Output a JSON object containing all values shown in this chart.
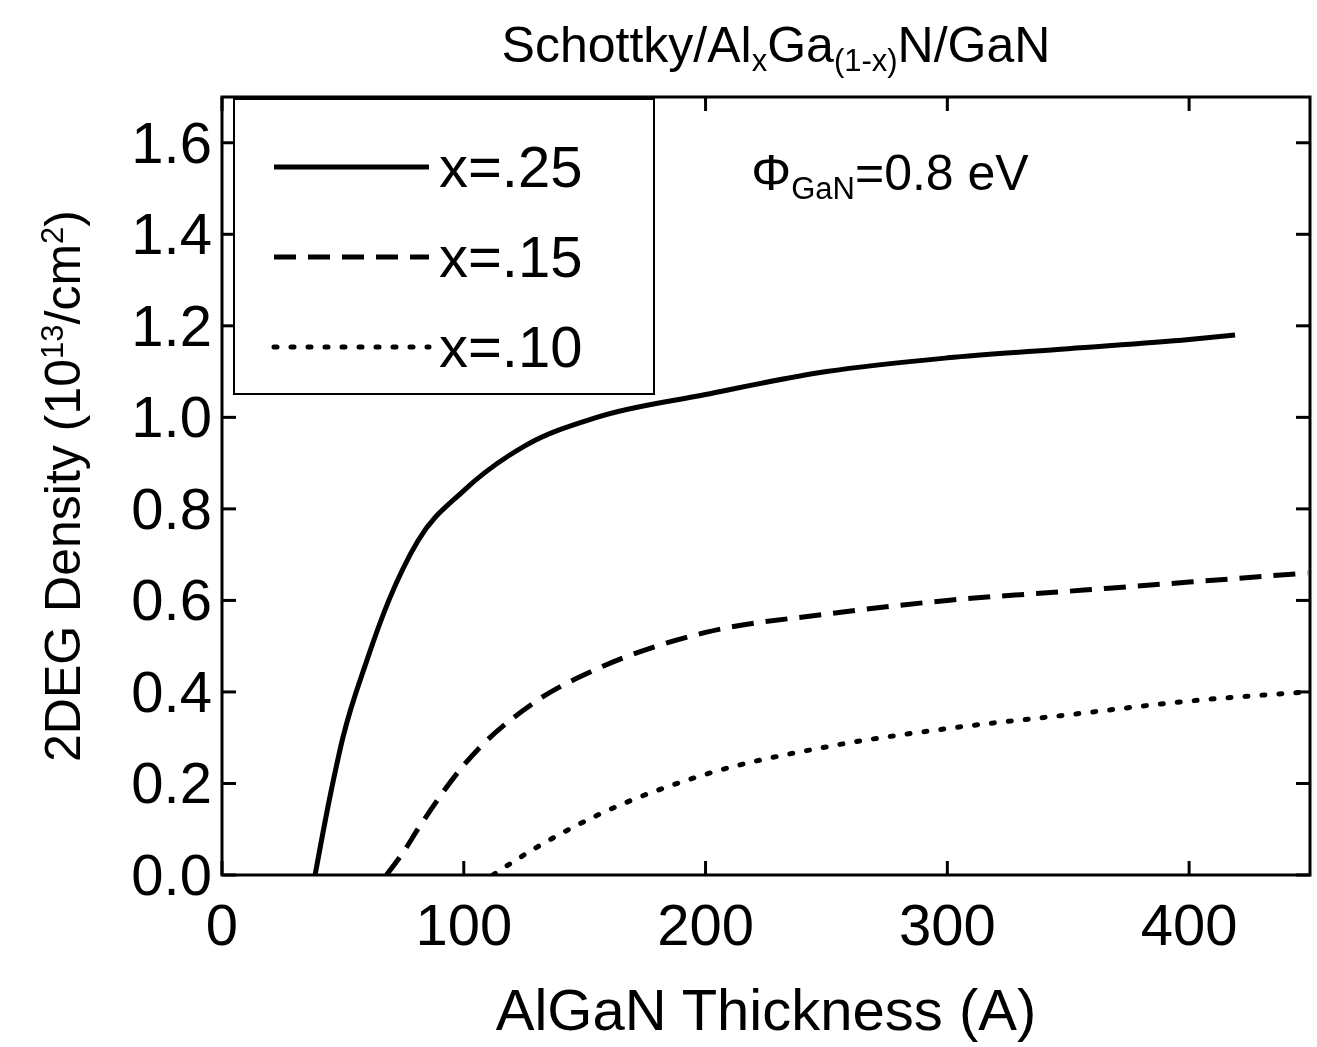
{
  "chart_data": {
    "type": "line",
    "title": "Schottky/Al$_{x}$Ga$_{(1-x)}$N/GaN",
    "xlabel": "AlGaN Thickness (A)",
    "ylabel": "2DEG Density (10$^{13}$/cm$^{2}$)",
    "annotations": [
      "Φ$_{GaN}$=0.8 eV"
    ],
    "xlim": [
      0,
      450
    ],
    "xticks": [
      0,
      100,
      200,
      300,
      400
    ],
    "ylim": [
      0,
      1.7
    ],
    "yticks": [
      {
        "value": 0,
        "label": "0.0"
      },
      0.2,
      0.4,
      0.6,
      0.8,
      {
        "value": 1,
        "label": "1.0"
      },
      1.2,
      1.4,
      1.6
    ],
    "legend": "top left",
    "series": [
      {
        "name": "x=.25",
        "color": "#000000",
        "line_style": "solid",
        "x": [
          38.5,
          45,
          50,
          60,
          69,
          81,
          100,
          126,
          155,
          200,
          250,
          300,
          350,
          400,
          419
        ],
        "values": [
          0,
          0.18,
          0.3,
          0.47,
          0.6,
          0.73,
          0.84,
          0.94,
          1.0,
          1.05,
          1.1,
          1.13,
          1.15,
          1.17,
          1.18
        ]
      },
      {
        "name": "x=.15",
        "color": "#000000",
        "line_style": "dashed",
        "x": [
          68,
          75,
          81,
          100,
          130,
          155,
          200,
          250,
          300,
          350,
          400,
          449
        ],
        "values": [
          0,
          0.05,
          0.1,
          0.24,
          0.38,
          0.45,
          0.53,
          0.57,
          0.6,
          0.62,
          0.64,
          0.66
        ]
      },
      {
        "name": "x=.10",
        "color": "#000000",
        "line_style": "dotted",
        "x": [
          112,
          130,
          155,
          200,
          250,
          300,
          350,
          400,
          449
        ],
        "values": [
          0,
          0.06,
          0.13,
          0.22,
          0.28,
          0.32,
          0.35,
          0.38,
          0.4
        ]
      }
    ]
  }
}
